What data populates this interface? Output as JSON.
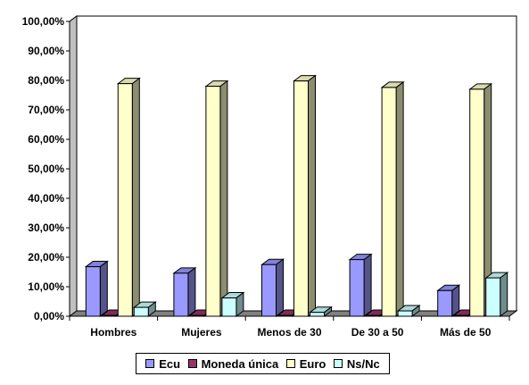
{
  "chart_data": {
    "type": "bar",
    "categories": [
      "Hombres",
      "Mujeres",
      "Menos de 30",
      "De 30 a 50",
      "Más de 50"
    ],
    "series": [
      {
        "name": "Ecu",
        "values": [
          16.8,
          14.6,
          17.5,
          19.2,
          8.7
        ],
        "color": "#9999ff"
      },
      {
        "name": "Moneda única",
        "values": [
          0.3,
          0.3,
          0.3,
          0.3,
          0.3
        ],
        "color": "#993366"
      },
      {
        "name": "Euro",
        "values": [
          78.9,
          78.0,
          79.8,
          77.6,
          77.0
        ],
        "color": "#ffffcc"
      },
      {
        "name": "Ns/Nc",
        "values": [
          3.0,
          6.2,
          1.3,
          1.8,
          13.0
        ],
        "color": "#ccffff"
      }
    ],
    "yticks": [
      "0,00%",
      "10,00%",
      "20,00%",
      "30,00%",
      "40,00%",
      "50,00%",
      "60,00%",
      "70,00%",
      "80,00%",
      "90,00%",
      "100,00%"
    ],
    "ylim": [
      0,
      100
    ],
    "grid": true,
    "legend_position": "bottom",
    "title": "",
    "xlabel": "",
    "ylabel": ""
  }
}
